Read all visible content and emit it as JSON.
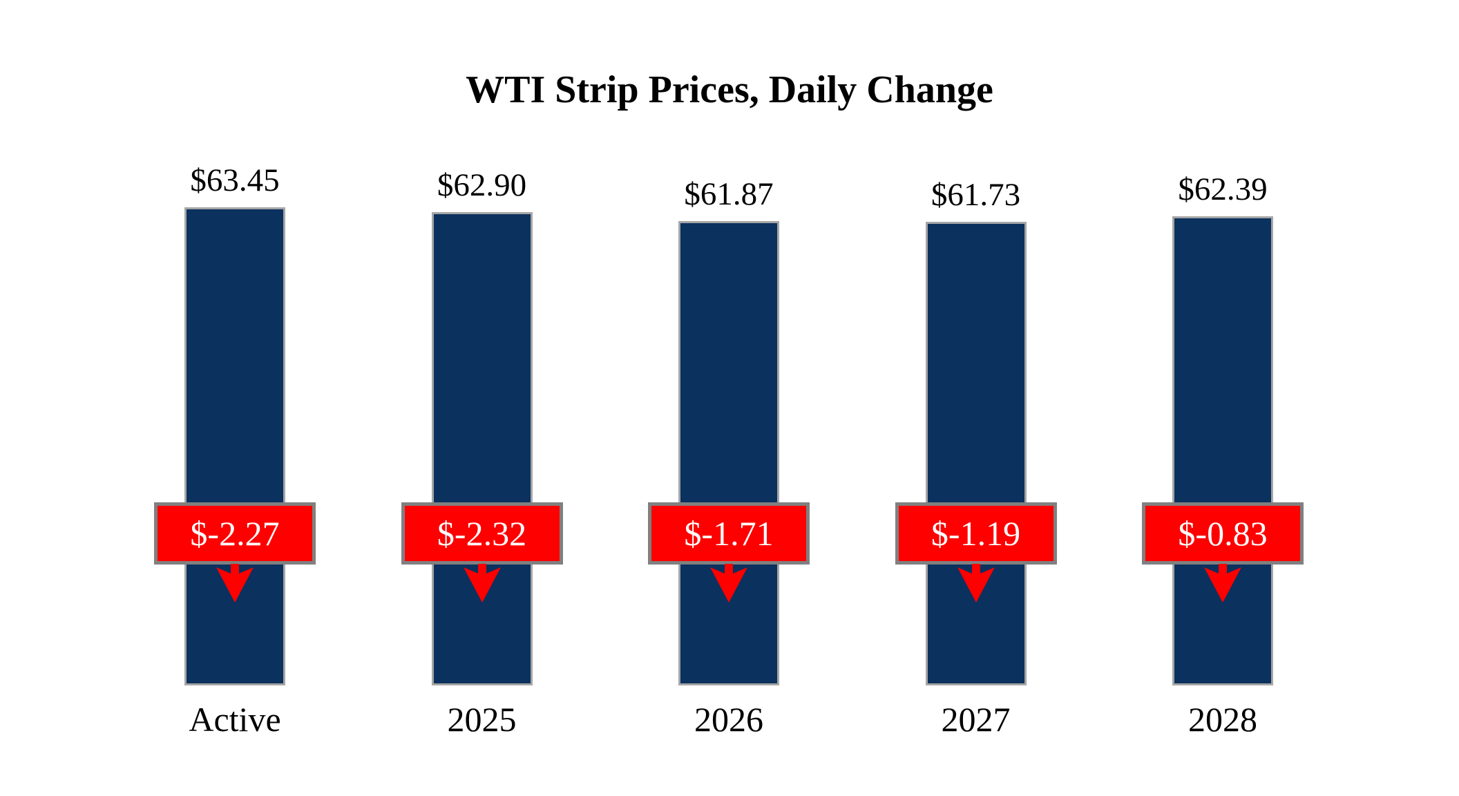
{
  "chart_data": {
    "type": "bar",
    "title": "WTI Strip Prices, Daily Change",
    "categories": [
      "Active",
      "2025",
      "2026",
      "2027",
      "2028"
    ],
    "series": [
      {
        "name": "strip_price_usd",
        "values": [
          63.45,
          62.9,
          61.87,
          61.73,
          62.39
        ]
      },
      {
        "name": "daily_change_usd",
        "values": [
          -2.27,
          -2.32,
          -1.71,
          -1.19,
          -0.83
        ]
      }
    ],
    "bars": [
      {
        "category": "Active",
        "price": 63.45,
        "price_label": "$63.45",
        "change": -2.27,
        "change_label": "$-2.27"
      },
      {
        "category": "2025",
        "price": 62.9,
        "price_label": "$62.90",
        "change": -2.32,
        "change_label": "$-2.32"
      },
      {
        "category": "2026",
        "price": 61.87,
        "price_label": "$61.87",
        "change": -1.71,
        "change_label": "$-1.71"
      },
      {
        "category": "2027",
        "price": 61.73,
        "price_label": "$61.73",
        "change": -1.19,
        "change_label": "$-1.19"
      },
      {
        "category": "2028",
        "price": 62.39,
        "price_label": "$62.39",
        "change": -0.83,
        "change_label": "$-0.83"
      }
    ],
    "layout": {
      "legend": false,
      "grid": false,
      "axes_visible": false,
      "price_label_position": "above-bar",
      "change_label_position": "box-overlaid-on-bar-with-down-arrow"
    },
    "colors": {
      "bar_fill": "#0b315e",
      "bar_border": "#a6a6a6",
      "change_box_fill": "#fe0000",
      "change_box_border": "#808080",
      "change_text": "#ffffff",
      "arrow": "#fe0000",
      "label_text": "#000000",
      "title_text": "#000000",
      "background": "#ffffff"
    }
  }
}
